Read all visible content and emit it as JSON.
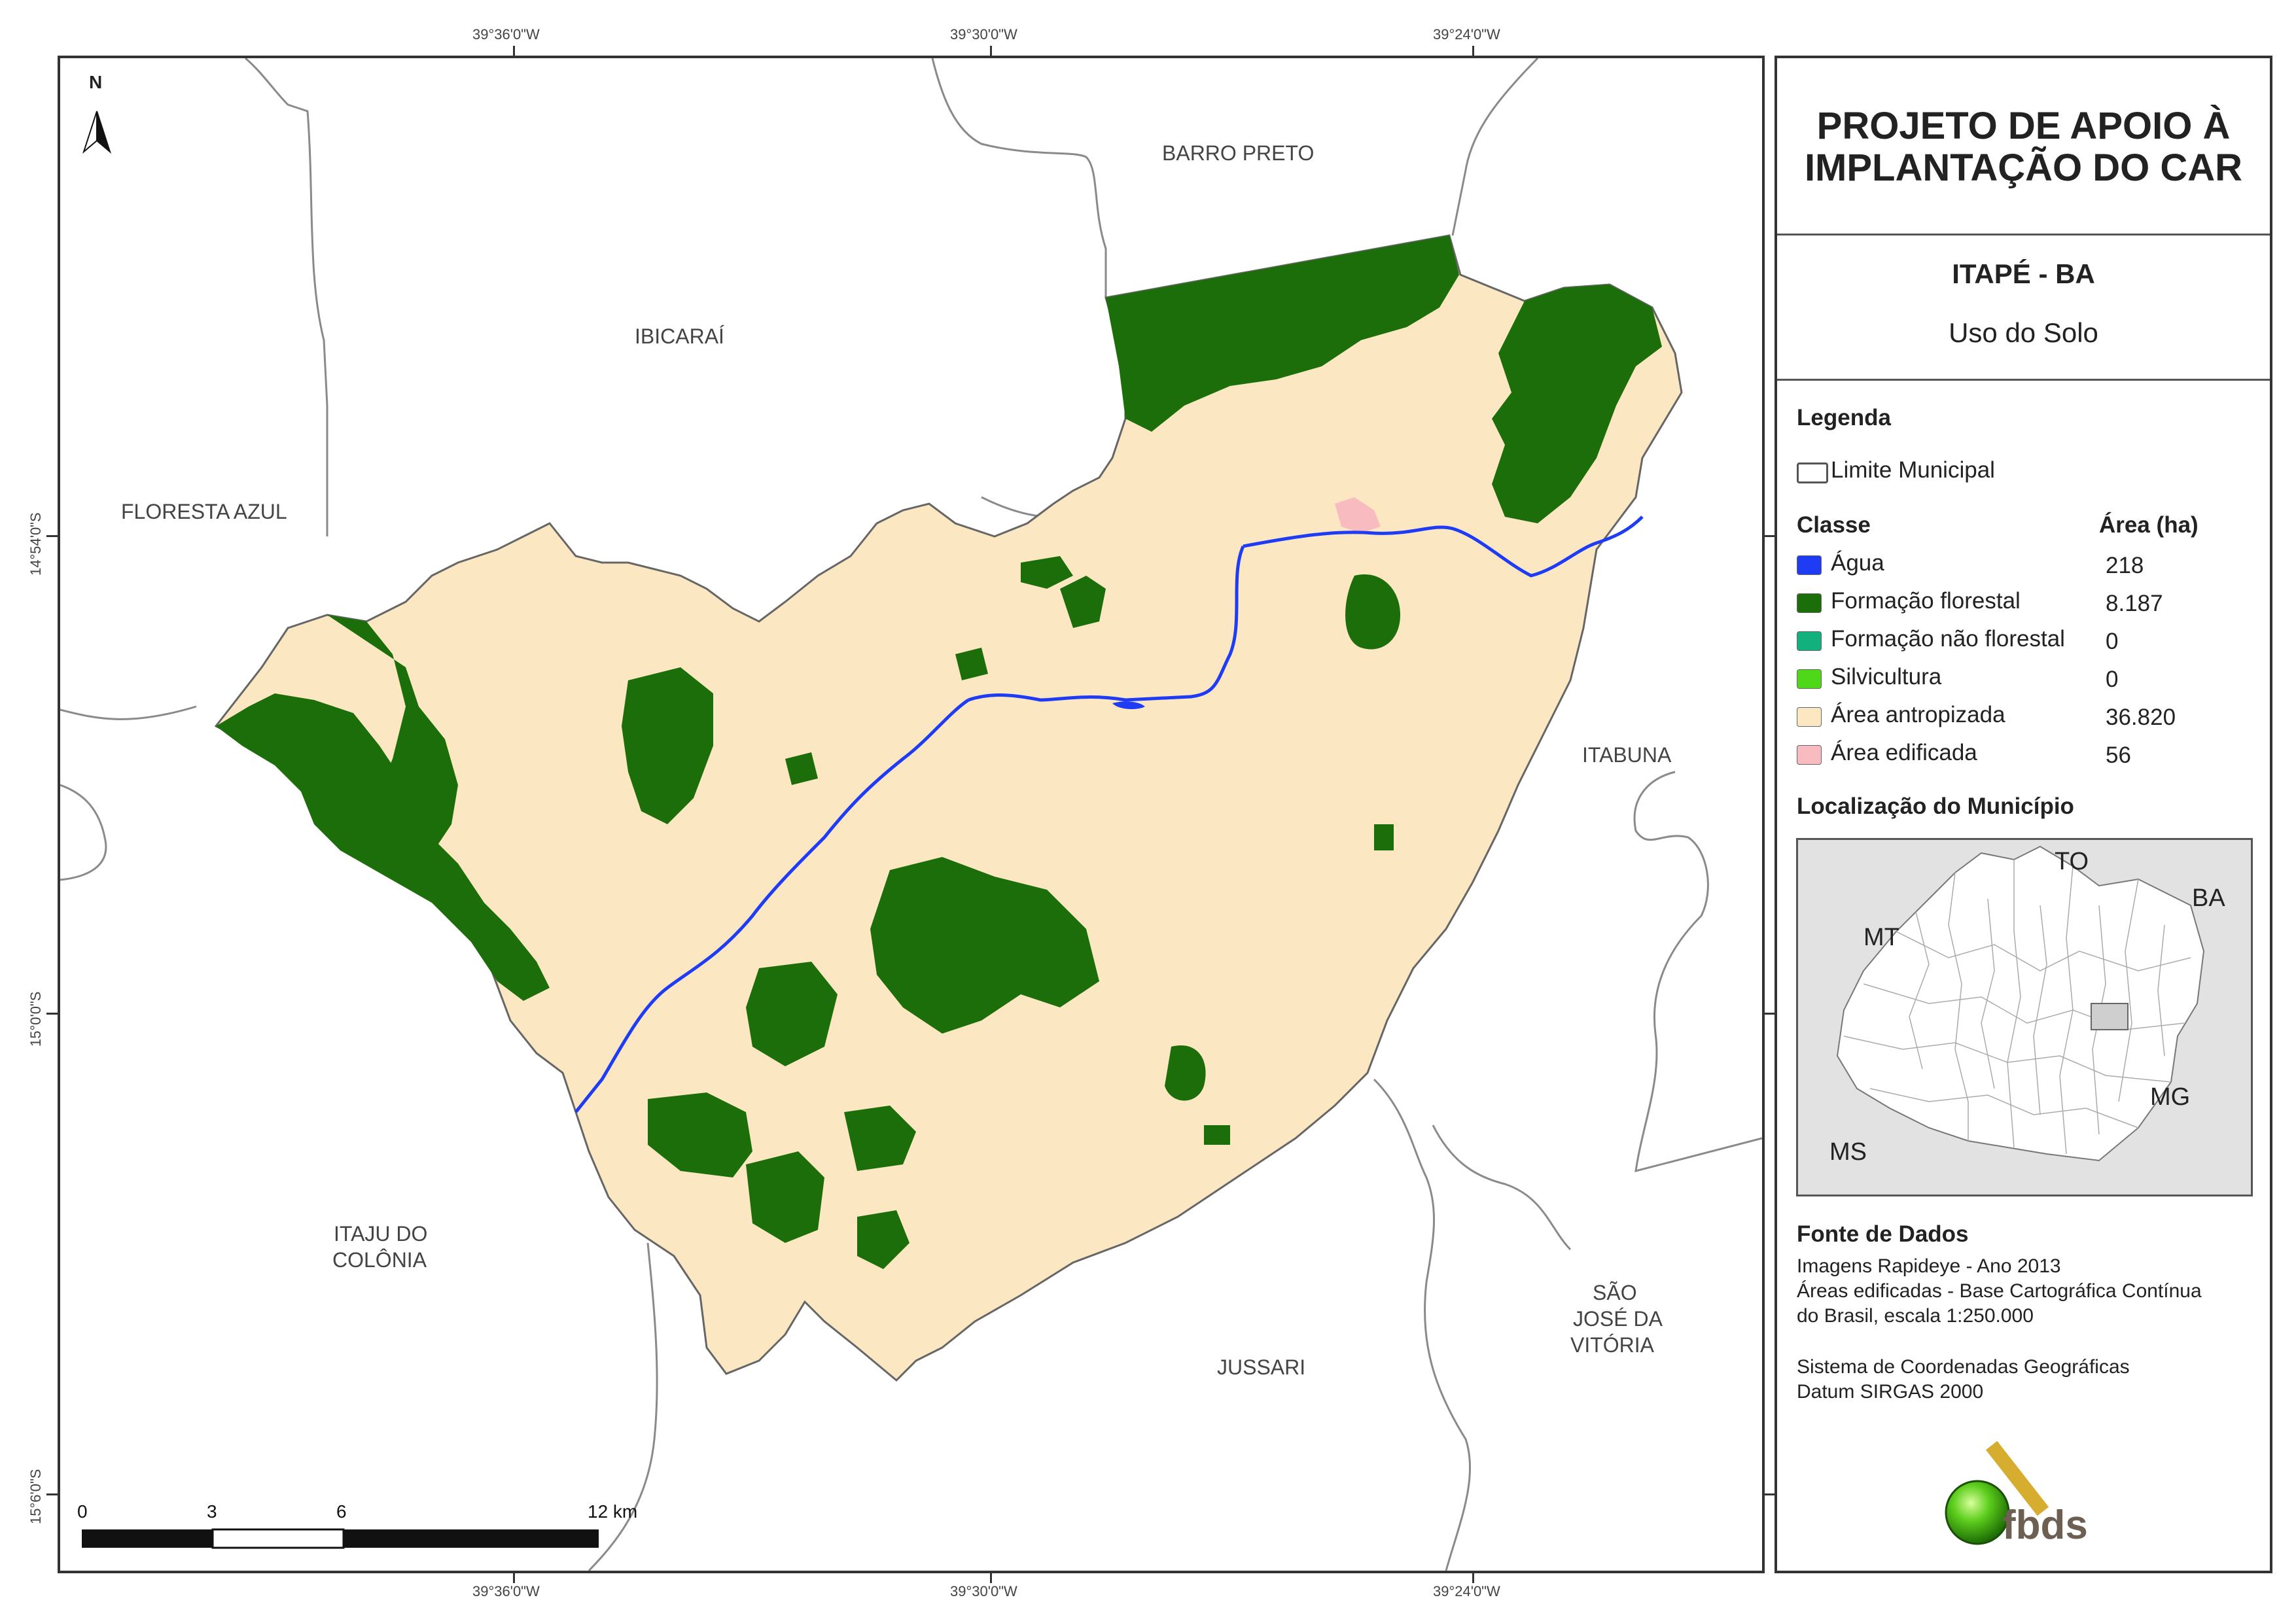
{
  "coordinates": {
    "top": [
      "39°36'0\"W",
      "39°30'0\"W",
      "39°24'0\"W"
    ],
    "bottom": [
      "39°36'0\"W",
      "39°30'0\"W",
      "39°24'0\"W"
    ],
    "left": [
      "14°54'0\"S",
      "15°0'0\"S",
      "15°6'0\"S"
    ]
  },
  "north_arrow": {
    "label": "N"
  },
  "municipalities": {
    "barro_preto": "BARRO PRETO",
    "ibicarai": "IBICARAÍ",
    "floresta_azul": "FLORESTA AZUL",
    "itabuna": "ITABUNA",
    "itaju_line1": "ITAJU DO",
    "itaju_line2": "COLÔNIA",
    "jussari": "JUSSARI",
    "sao_jose_line1": "SÃO",
    "sao_jose_line2": "JOSÉ DA",
    "sao_jose_line3": "VITÓRIA"
  },
  "scale_bar": {
    "labels": [
      "0",
      "3",
      "6",
      "12 km"
    ]
  },
  "panel": {
    "title_line1": "PROJETO DE APOIO À",
    "title_line2": "IMPLANTAÇÃO DO CAR",
    "municipality": "ITAPÉ - BA",
    "subtitle": "Uso do Solo",
    "legend_heading": "Legenda",
    "boundary_label": "Limite Municipal",
    "class_heading": "Classe",
    "area_heading": "Área (ha)",
    "classes": [
      {
        "label": "Água",
        "value": "218",
        "color": "#1f3cf5"
      },
      {
        "label": "Formação florestal",
        "value": "8.187",
        "color": "#1c6e0a"
      },
      {
        "label": "Formação não florestal",
        "value": "0",
        "color": "#11b07c"
      },
      {
        "label": "Silvicultura",
        "value": "0",
        "color": "#4fd81a"
      },
      {
        "label": "Área antropizada",
        "value": "36.820",
        "color": "#fbe8c2"
      },
      {
        "label": "Área edificada",
        "value": "56",
        "color": "#f8bcc0"
      }
    ],
    "location_heading": "Localização do Município",
    "inset_labels": {
      "to": "TO",
      "ba": "BA",
      "mt": "MT",
      "mg": "MG",
      "ms": "MS"
    },
    "source_heading": "Fonte de Dados",
    "source_lines": [
      "Imagens Rapideye - Ano 2013",
      "Áreas edificadas - Base Cartográfica Contínua",
      "do Brasil, escala 1:250.000"
    ],
    "crs_lines": [
      "Sistema de Coordenadas Geográficas",
      "Datum SIRGAS 2000"
    ],
    "logo_text": "fbds"
  },
  "colors": {
    "forest": "#1c6e0a",
    "anthropized": "#fbe8c2",
    "water": "#1f3cf5",
    "built": "#f8bcc0",
    "inset_bg": "#e2e2e2"
  }
}
